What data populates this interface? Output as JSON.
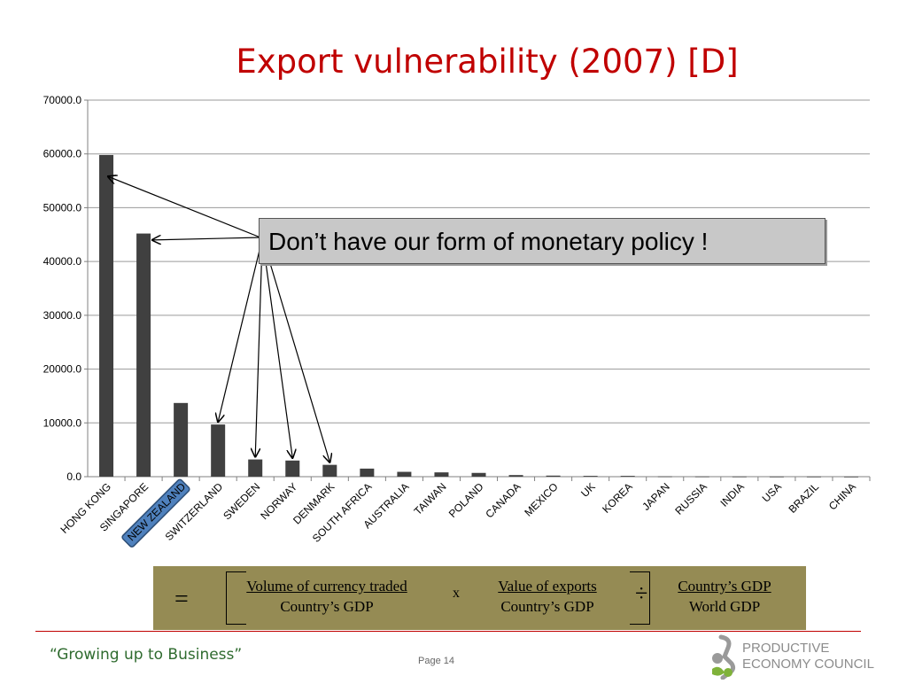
{
  "slide": {
    "title": "Export vulnerability (2007) [D]",
    "callout": "Don’t have our form of monetary policy !",
    "tagline": "“Growing up to Business”",
    "page_label": "Page 14",
    "logo_line1": "PRODUCTIVE",
    "logo_line2": "ECONOMY COUNCIL",
    "accent_color": "#c00000",
    "highlight_label": "NEW ZEALAND"
  },
  "formula": {
    "equals": "=",
    "f1_num": "Volume of currency traded",
    "f1_den": "Country’s GDP",
    "times": "x",
    "f2_num": "Value of exports",
    "f2_den": "Country’s GDP",
    "divide": "÷",
    "f3_num": "Country’s GDP",
    "f3_den": "World GDP",
    "box_color": "#958b54"
  },
  "chart_data": {
    "type": "bar",
    "categories": [
      "HONG KONG",
      "SINGAPORE",
      "NEW ZEALAND",
      "SWITZERLAND",
      "SWEDEN",
      "NORWAY",
      "DENMARK",
      "SOUTH AFRICA",
      "AUSTRALIA",
      "TAIWAN",
      "POLAND",
      "CANADA",
      "MEXICO",
      "UK",
      "KOREA",
      "JAPAN",
      "RUSSIA",
      "INDIA",
      "USA",
      "BRAZIL",
      "CHINA"
    ],
    "values": [
      59800,
      45200,
      13700,
      9700,
      3200,
      3000,
      2200,
      1500,
      900,
      800,
      700,
      300,
      200,
      150,
      150,
      50,
      40,
      30,
      20,
      20,
      10
    ],
    "yticks": [
      "0.0",
      "10000.0",
      "20000.0",
      "30000.0",
      "40000.0",
      "50000.0",
      "60000.0",
      "70000.0"
    ],
    "ylim": [
      0,
      70000
    ],
    "grid": true,
    "bar_color": "#404040"
  }
}
